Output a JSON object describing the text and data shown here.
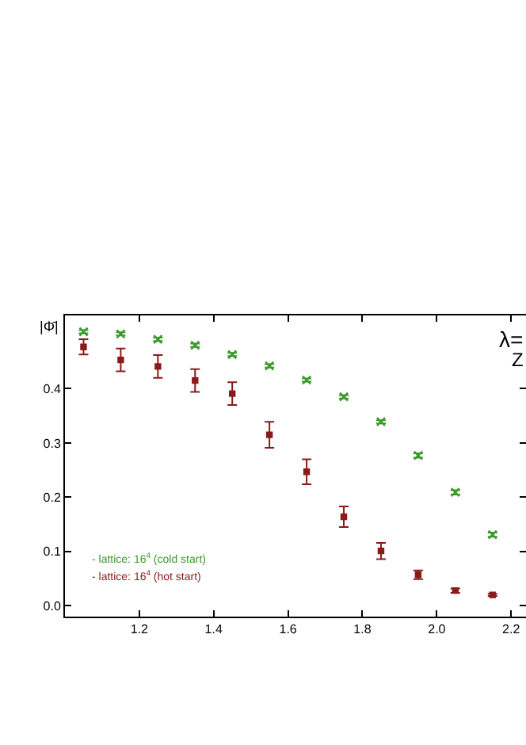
{
  "chart_data": {
    "type": "scatter",
    "ylabel": "|Φ̄|",
    "annotations": [
      "λ=",
      "Z"
    ],
    "x": [
      1.05,
      1.15,
      1.25,
      1.35,
      1.45,
      1.55,
      1.65,
      1.75,
      1.85,
      1.95,
      2.05,
      2.15
    ],
    "series": [
      {
        "name": "- lattice: 16$^{4}$ (cold start)",
        "color": "#3a9a2a",
        "marker": "cross",
        "values": [
          0.505,
          0.501,
          0.491,
          0.48,
          0.463,
          0.442,
          0.416,
          0.385,
          0.339,
          0.277,
          0.209,
          0.131
        ],
        "errors": [
          0.003,
          0.003,
          0.003,
          0.003,
          0.003,
          0.003,
          0.003,
          0.003,
          0.003,
          0.004,
          0.004,
          0.004
        ]
      },
      {
        "name": "- lattice: 16$^{4}$ (hot start)",
        "color": "#8b1a1a",
        "marker": "square",
        "values": [
          0.477,
          0.453,
          0.441,
          0.415,
          0.391,
          0.315,
          0.247,
          0.164,
          0.101,
          0.057,
          0.028,
          0.02
        ],
        "errors": [
          0.014,
          0.021,
          0.021,
          0.021,
          0.021,
          0.024,
          0.023,
          0.019,
          0.015,
          0.008,
          0.004,
          0.002
        ]
      }
    ],
    "xlim": [
      1.0,
      2.24
    ],
    "xticks": [
      1.2,
      1.4,
      1.6,
      1.8,
      {
        "value": 2,
        "label": "2.0"
      },
      2.2
    ],
    "ylim": [
      -0.02,
      0.535
    ],
    "yticks": [
      {
        "value": 0,
        "label": "0.0"
      },
      0.1,
      0.2,
      0.3,
      0.4
    ],
    "grid": false,
    "legend": "bottom left"
  }
}
